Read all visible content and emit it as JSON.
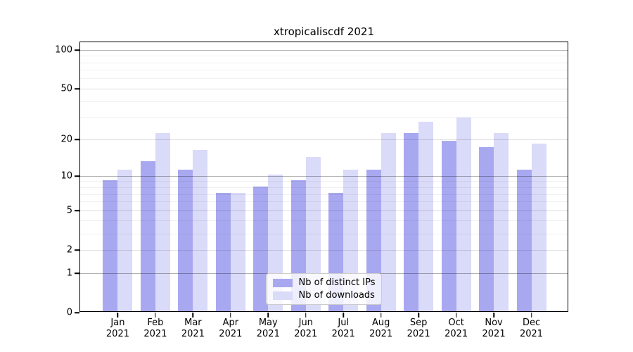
{
  "title": "xtropicaliscdf 2021",
  "colors": {
    "ips_bar": "#a8a8f1",
    "downloads_bar": "#dadaf9",
    "grid_major": "rgba(0,0,0,0.30)",
    "grid_mid": "rgba(0,0,0,0.13)",
    "grid_minor": "rgba(0,0,0,0.06)",
    "axis": "#000000",
    "legend_border": "#cccccc"
  },
  "legend": {
    "items": [
      {
        "label": "Nb of distinct IPs",
        "color_key": "ips_bar"
      },
      {
        "label": "Nb of downloads",
        "color_key": "downloads_bar"
      }
    ]
  },
  "axes": {
    "y_ticks": [
      {
        "value": 0,
        "label": "0"
      },
      {
        "value": 1,
        "label": "1"
      },
      {
        "value": 2,
        "label": "2"
      },
      {
        "value": 5,
        "label": "5"
      },
      {
        "value": 10,
        "label": "10"
      },
      {
        "value": 20,
        "label": "20"
      },
      {
        "value": 50,
        "label": "50"
      },
      {
        "value": 100,
        "label": "100"
      }
    ],
    "x_months": [
      "Jan",
      "Feb",
      "Mar",
      "Apr",
      "May",
      "Jun",
      "Jul",
      "Aug",
      "Sep",
      "Oct",
      "Nov",
      "Dec"
    ],
    "x_year": "2021",
    "grid_major_values": [
      1,
      10,
      100
    ],
    "grid_mid_values": [
      2,
      5,
      20,
      50
    ],
    "grid_minor_values": [
      3,
      4,
      6,
      7,
      8,
      9,
      30,
      40,
      60,
      70,
      80,
      90
    ]
  },
  "chart_data": {
    "type": "bar",
    "title": "xtropicaliscdf 2021",
    "categories": [
      "Jan 2021",
      "Feb 2021",
      "Mar 2021",
      "Apr 2021",
      "May 2021",
      "Jun 2021",
      "Jul 2021",
      "Aug 2021",
      "Sep 2021",
      "Oct 2021",
      "Nov 2021",
      "Dec 2021"
    ],
    "series": [
      {
        "name": "Nb of distinct IPs",
        "color": "#a8a8f1",
        "values": [
          9,
          13,
          11,
          7,
          8,
          9,
          7,
          11,
          22,
          19,
          17,
          11
        ]
      },
      {
        "name": "Nb of downloads",
        "color": "#dadaf9",
        "values": [
          11,
          22,
          16,
          7,
          10,
          14,
          11,
          22,
          27,
          29,
          22,
          18
        ]
      }
    ],
    "yscale": "log1p",
    "ylim": [
      0,
      115
    ],
    "yticks": [
      0,
      1,
      2,
      5,
      10,
      20,
      50,
      100
    ],
    "grid": true,
    "legend_position": "lower center"
  }
}
